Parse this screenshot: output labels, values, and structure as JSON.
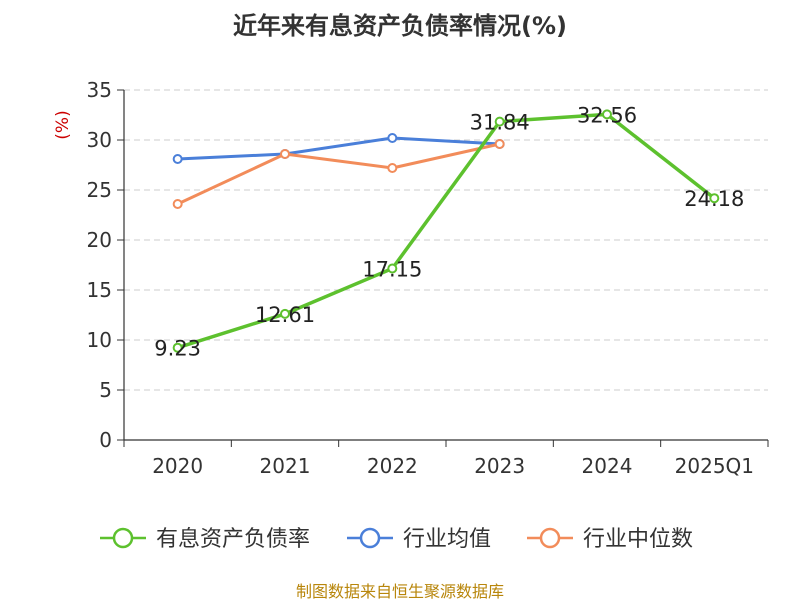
{
  "chart_data": {
    "type": "line",
    "title": "近年来有息资产负债率情况(%)",
    "ylabel": "(%)",
    "xlabel": "",
    "categories": [
      "2020",
      "2021",
      "2022",
      "2023",
      "2024",
      "2025Q1"
    ],
    "ylim": [
      0,
      35
    ],
    "yticks": [
      0,
      5,
      10,
      15,
      20,
      25,
      30,
      35
    ],
    "grid": true,
    "legend_position": "bottom",
    "series": [
      {
        "name": "有息资产负债率",
        "color": "#5dc12e",
        "values": [
          9.23,
          12.61,
          17.15,
          31.84,
          32.56,
          24.18
        ],
        "labels": [
          "9.23",
          "12.61",
          "17.15",
          "31.84",
          "32.56",
          "24.18"
        ]
      },
      {
        "name": "行业均值",
        "color": "#4a7fd9",
        "values": [
          28.1,
          28.6,
          30.2,
          29.6,
          null,
          null
        ]
      },
      {
        "name": "行业中位数",
        "color": "#f28c5a",
        "values": [
          23.6,
          28.6,
          27.2,
          29.6,
          null,
          null
        ]
      }
    ],
    "source": "制图数据来自恒生聚源数据库"
  }
}
